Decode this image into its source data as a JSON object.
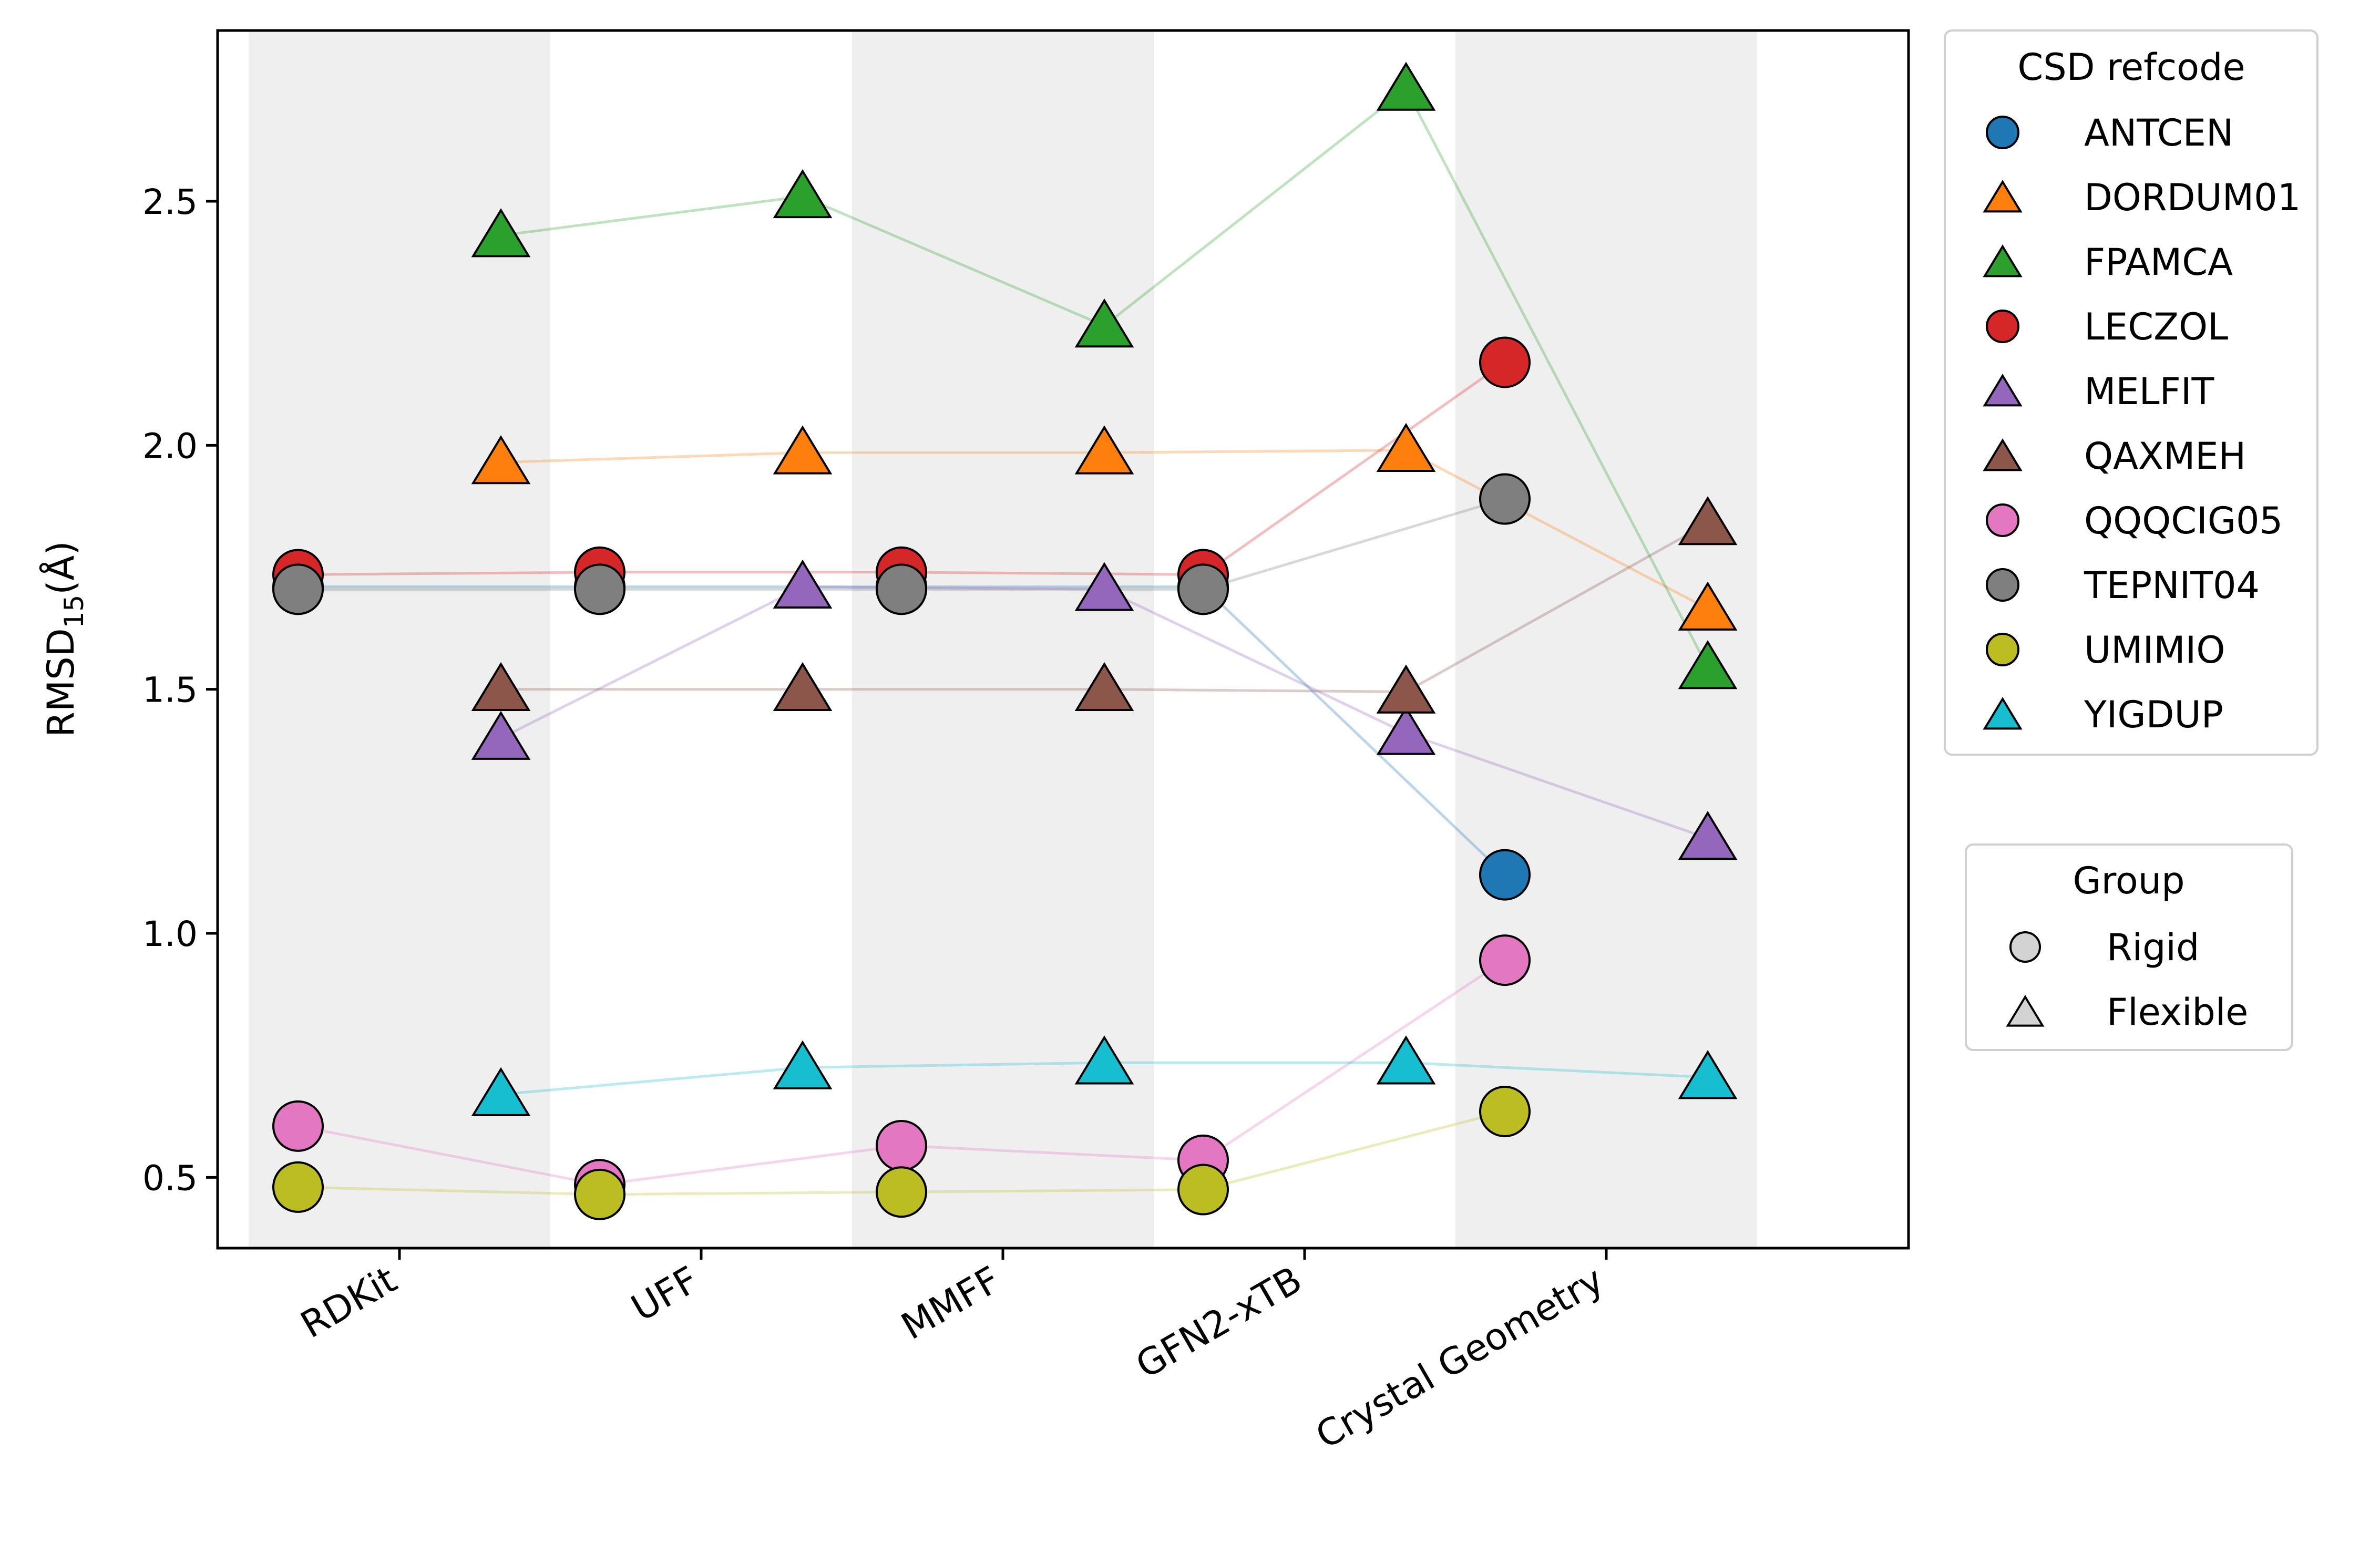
{
  "chart_data": {
    "type": "scatter",
    "title": "",
    "xlabel": "",
    "ylabel": "RMSD",
    "ylabel_sub": "15",
    "ylabel_unit": "(Å)",
    "categories": [
      "RDKit",
      "UFF",
      "MMFF",
      "GFN2-xTB",
      "Crystal Geometry"
    ],
    "ylim": [
      0.355,
      2.85
    ],
    "yticks": [
      0.5,
      1.0,
      1.5,
      2.0,
      2.5
    ],
    "ytick_labels": [
      "0.5",
      "1.0",
      "1.5",
      "2.0",
      "2.5"
    ],
    "shaded_categories": [
      0,
      2,
      4
    ],
    "colors": {
      "shade": "#efefef",
      "axis": "#000000"
    },
    "series": [
      {
        "name": "ANTCEN",
        "group": "Rigid",
        "color": "#1f77b4",
        "values": [
          1.71,
          1.71,
          1.71,
          1.71,
          1.12
        ]
      },
      {
        "name": "DORDUM01",
        "group": "Flexible",
        "color": "#ff7f0e",
        "values": [
          1.965,
          1.985,
          1.985,
          1.99,
          1.665
        ]
      },
      {
        "name": "FPAMCA",
        "group": "Flexible",
        "color": "#2ca02c",
        "values": [
          2.43,
          2.51,
          2.245,
          2.73,
          1.545
        ]
      },
      {
        "name": "LECZOL",
        "group": "Rigid",
        "color": "#d62728",
        "values": [
          1.735,
          1.74,
          1.74,
          1.735,
          2.17
        ]
      },
      {
        "name": "MELFIT",
        "group": "Flexible",
        "color": "#9467bd",
        "values": [
          1.4,
          1.71,
          1.705,
          1.41,
          1.195
        ]
      },
      {
        "name": "QAXMEH",
        "group": "Flexible",
        "color": "#8c564b",
        "values": [
          1.5,
          1.5,
          1.5,
          1.495,
          1.84
        ]
      },
      {
        "name": "QQQCIG05",
        "group": "Rigid",
        "color": "#e377c2",
        "values": [
          0.605,
          0.485,
          0.565,
          0.535,
          0.945
        ]
      },
      {
        "name": "TEPNIT04",
        "group": "Rigid",
        "color": "#7f7f7f",
        "values": [
          1.705,
          1.705,
          1.705,
          1.705,
          1.89
        ]
      },
      {
        "name": "UMIMIO",
        "group": "Rigid",
        "color": "#bcbd22",
        "values": [
          0.48,
          0.465,
          0.47,
          0.475,
          0.635
        ]
      },
      {
        "name": "YIGDUP",
        "group": "Flexible",
        "color": "#17becf",
        "values": [
          0.67,
          0.725,
          0.735,
          0.735,
          0.705
        ]
      }
    ],
    "legends": [
      {
        "title": "CSD refcode",
        "placement": "upper-right-outside",
        "entries": "series"
      },
      {
        "title": "Group",
        "placement": "right-outside",
        "entries": [
          {
            "label": "Rigid",
            "marker": "circle",
            "color": "#d3d3d3"
          },
          {
            "label": "Flexible",
            "marker": "triangle",
            "color": "#d3d3d3"
          }
        ]
      }
    ]
  }
}
